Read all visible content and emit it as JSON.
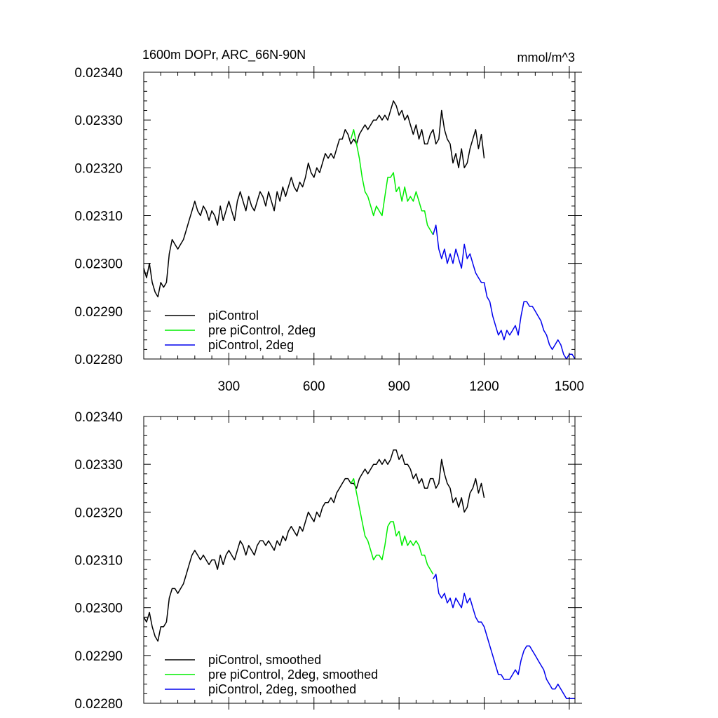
{
  "chart_data": [
    {
      "type": "line",
      "title": "1600m DOPr, ARC_66N-90N",
      "units": "mmol/m^3",
      "xlabel": "",
      "ylabel": "",
      "xlim": [
        0,
        1520
      ],
      "ylim": [
        0.0228,
        0.0234
      ],
      "xticks": [
        300,
        600,
        900,
        1200,
        1500
      ],
      "xtick_labels": [
        "300",
        "600",
        "900",
        "1200",
        "1500"
      ],
      "yticks": [
        0.0228,
        0.0229,
        0.023,
        0.0231,
        0.0232,
        0.0233,
        0.0234
      ],
      "ytick_labels": [
        "0.02280",
        "0.02290",
        "0.02300",
        "0.02310",
        "0.02320",
        "0.02330",
        "0.02340"
      ],
      "legend_position": "bottom-left",
      "grid": false,
      "series": [
        {
          "name": "piControl",
          "color": "#000000",
          "x": [
            0,
            10,
            20,
            30,
            40,
            50,
            60,
            70,
            80,
            90,
            100,
            110,
            120,
            130,
            140,
            150,
            160,
            170,
            180,
            190,
            200,
            210,
            220,
            230,
            240,
            250,
            260,
            270,
            280,
            290,
            300,
            310,
            320,
            330,
            340,
            350,
            360,
            370,
            380,
            390,
            400,
            410,
            420,
            430,
            440,
            450,
            460,
            470,
            480,
            490,
            500,
            510,
            520,
            530,
            540,
            550,
            560,
            570,
            580,
            590,
            600,
            610,
            620,
            630,
            640,
            650,
            660,
            670,
            680,
            690,
            700,
            710,
            720,
            730,
            740,
            750,
            760,
            770,
            780,
            790,
            800,
            810,
            820,
            830,
            840,
            850,
            860,
            870,
            880,
            890,
            900,
            910,
            920,
            930,
            940,
            950,
            960,
            970,
            980,
            990,
            1000,
            1010,
            1020,
            1030,
            1040,
            1050,
            1060,
            1070,
            1080,
            1090,
            1100,
            1110,
            1120,
            1130,
            1140,
            1150,
            1160,
            1170,
            1180,
            1190,
            1200
          ],
          "values": [
            0.02299,
            0.02297,
            0.023,
            0.02296,
            0.02294,
            0.02293,
            0.02296,
            0.02295,
            0.02296,
            0.02302,
            0.02305,
            0.02304,
            0.02303,
            0.02304,
            0.02305,
            0.02307,
            0.02309,
            0.02311,
            0.02313,
            0.02311,
            0.0231,
            0.02312,
            0.02311,
            0.02309,
            0.02311,
            0.0231,
            0.02308,
            0.02312,
            0.02309,
            0.02311,
            0.02313,
            0.02311,
            0.02309,
            0.02313,
            0.02315,
            0.02313,
            0.02311,
            0.02314,
            0.02312,
            0.02311,
            0.02313,
            0.02315,
            0.02314,
            0.02312,
            0.02315,
            0.02313,
            0.02311,
            0.02315,
            0.02313,
            0.02316,
            0.02314,
            0.02316,
            0.02318,
            0.02316,
            0.02315,
            0.02317,
            0.02316,
            0.02318,
            0.02321,
            0.02319,
            0.02318,
            0.0232,
            0.02319,
            0.02321,
            0.02323,
            0.02322,
            0.02323,
            0.02322,
            0.02324,
            0.02326,
            0.02326,
            0.02328,
            0.02327,
            0.02325,
            0.02326,
            0.02325,
            0.02327,
            0.02328,
            0.02329,
            0.02328,
            0.02329,
            0.0233,
            0.0233,
            0.02331,
            0.0233,
            0.02331,
            0.0233,
            0.02332,
            0.02334,
            0.02333,
            0.02331,
            0.02332,
            0.0233,
            0.02331,
            0.02329,
            0.02327,
            0.02329,
            0.02326,
            0.02328,
            0.02325,
            0.02325,
            0.02327,
            0.02328,
            0.02325,
            0.02326,
            0.02332,
            0.02328,
            0.02326,
            0.02325,
            0.02321,
            0.02323,
            0.0232,
            0.02324,
            0.0232,
            0.02321,
            0.02324,
            0.02326,
            0.02328,
            0.02324,
            0.02327,
            0.02322
          ]
        },
        {
          "name": "pre piControl, 2deg",
          "color": "#00ee00",
          "x": [
            730,
            740,
            750,
            760,
            770,
            780,
            790,
            800,
            810,
            820,
            830,
            840,
            850,
            860,
            870,
            880,
            890,
            900,
            910,
            920,
            930,
            940,
            950,
            960,
            970,
            980,
            990,
            1000,
            1010,
            1020
          ],
          "values": [
            0.02326,
            0.02328,
            0.02325,
            0.02322,
            0.02318,
            0.02315,
            0.02314,
            0.02312,
            0.0231,
            0.02312,
            0.02311,
            0.0231,
            0.02314,
            0.02318,
            0.02318,
            0.02319,
            0.02315,
            0.02316,
            0.02313,
            0.02316,
            0.02313,
            0.02314,
            0.02313,
            0.02315,
            0.02313,
            0.02311,
            0.02311,
            0.02308,
            0.02307,
            0.02306
          ]
        },
        {
          "name": "piControl, 2deg",
          "color": "#0000ee",
          "x": [
            1020,
            1030,
            1040,
            1050,
            1060,
            1070,
            1080,
            1090,
            1100,
            1110,
            1120,
            1130,
            1140,
            1150,
            1160,
            1170,
            1180,
            1190,
            1200,
            1210,
            1220,
            1230,
            1240,
            1250,
            1260,
            1270,
            1280,
            1290,
            1300,
            1310,
            1320,
            1330,
            1340,
            1350,
            1360,
            1370,
            1380,
            1390,
            1400,
            1410,
            1420,
            1430,
            1440,
            1450,
            1460,
            1470,
            1480,
            1490,
            1500,
            1510,
            1520
          ],
          "values": [
            0.02306,
            0.02308,
            0.02303,
            0.02301,
            0.02303,
            0.023,
            0.02302,
            0.023,
            0.02303,
            0.02301,
            0.02299,
            0.02304,
            0.02301,
            0.02302,
            0.023,
            0.02298,
            0.02297,
            0.02296,
            0.02296,
            0.02293,
            0.02292,
            0.02289,
            0.02287,
            0.02285,
            0.02286,
            0.02284,
            0.02286,
            0.02285,
            0.02286,
            0.02287,
            0.02285,
            0.02289,
            0.02292,
            0.02292,
            0.02291,
            0.02291,
            0.0229,
            0.02289,
            0.02288,
            0.02286,
            0.02285,
            0.02283,
            0.02282,
            0.02283,
            0.02284,
            0.02283,
            0.02281,
            0.0228,
            0.02281,
            0.02281,
            0.0228
          ]
        }
      ]
    },
    {
      "type": "line",
      "title": "",
      "units": "",
      "xlabel": "",
      "ylabel": "",
      "xlim": [
        0,
        1520
      ],
      "ylim": [
        0.0228,
        0.0234
      ],
      "xticks": [
        300,
        600,
        900,
        1200,
        1500
      ],
      "xtick_labels": [],
      "yticks": [
        0.0228,
        0.0229,
        0.023,
        0.0231,
        0.0232,
        0.0233,
        0.0234
      ],
      "ytick_labels": [
        "0.02280",
        "0.02290",
        "0.02300",
        "0.02310",
        "0.02320",
        "0.02330",
        "0.02340"
      ],
      "legend_position": "bottom-left",
      "grid": false,
      "series": [
        {
          "name": "piControl, smoothed",
          "color": "#000000",
          "x": [
            0,
            10,
            20,
            30,
            40,
            50,
            60,
            70,
            80,
            90,
            100,
            110,
            120,
            130,
            140,
            150,
            160,
            170,
            180,
            190,
            200,
            210,
            220,
            230,
            240,
            250,
            260,
            270,
            280,
            290,
            300,
            310,
            320,
            330,
            340,
            350,
            360,
            370,
            380,
            390,
            400,
            410,
            420,
            430,
            440,
            450,
            460,
            470,
            480,
            490,
            500,
            510,
            520,
            530,
            540,
            550,
            560,
            570,
            580,
            590,
            600,
            610,
            620,
            630,
            640,
            650,
            660,
            670,
            680,
            690,
            700,
            710,
            720,
            730,
            740,
            750,
            760,
            770,
            780,
            790,
            800,
            810,
            820,
            830,
            840,
            850,
            860,
            870,
            880,
            890,
            900,
            910,
            920,
            930,
            940,
            950,
            960,
            970,
            980,
            990,
            1000,
            1010,
            1020,
            1030,
            1040,
            1050,
            1060,
            1070,
            1080,
            1090,
            1100,
            1110,
            1120,
            1130,
            1140,
            1150,
            1160,
            1170,
            1180,
            1190,
            1200
          ],
          "values": [
            0.02298,
            0.02297,
            0.02299,
            0.02296,
            0.02294,
            0.02293,
            0.02296,
            0.02296,
            0.02297,
            0.02302,
            0.02304,
            0.02304,
            0.02303,
            0.02304,
            0.02305,
            0.02307,
            0.02309,
            0.02311,
            0.02312,
            0.02311,
            0.0231,
            0.02311,
            0.0231,
            0.02309,
            0.0231,
            0.0231,
            0.02308,
            0.02311,
            0.02309,
            0.02311,
            0.02312,
            0.02311,
            0.0231,
            0.02312,
            0.02314,
            0.02313,
            0.02311,
            0.02313,
            0.02312,
            0.02311,
            0.02313,
            0.02314,
            0.02314,
            0.02313,
            0.02314,
            0.02313,
            0.02312,
            0.02314,
            0.02313,
            0.02315,
            0.02314,
            0.02316,
            0.02317,
            0.02316,
            0.02315,
            0.02317,
            0.02316,
            0.02318,
            0.0232,
            0.02319,
            0.02318,
            0.0232,
            0.02319,
            0.02321,
            0.02322,
            0.02322,
            0.02323,
            0.02322,
            0.02324,
            0.02325,
            0.02326,
            0.02327,
            0.02327,
            0.02326,
            0.02326,
            0.02325,
            0.02327,
            0.02328,
            0.02329,
            0.02328,
            0.02329,
            0.0233,
            0.0233,
            0.02331,
            0.0233,
            0.02331,
            0.0233,
            0.02331,
            0.02333,
            0.02333,
            0.02331,
            0.02332,
            0.0233,
            0.0233,
            0.02329,
            0.02327,
            0.02328,
            0.02326,
            0.02327,
            0.02325,
            0.02325,
            0.02327,
            0.02327,
            0.02325,
            0.02326,
            0.02331,
            0.02328,
            0.02326,
            0.02325,
            0.02322,
            0.02323,
            0.02321,
            0.02323,
            0.0232,
            0.02321,
            0.02324,
            0.02325,
            0.02327,
            0.02324,
            0.02326,
            0.02323
          ]
        },
        {
          "name": "pre piControl, 2deg, smoothed",
          "color": "#00ee00",
          "x": [
            730,
            740,
            750,
            760,
            770,
            780,
            790,
            800,
            810,
            820,
            830,
            840,
            850,
            860,
            870,
            880,
            890,
            900,
            910,
            920,
            930,
            940,
            950,
            960,
            970,
            980,
            990,
            1000,
            1010,
            1020
          ],
          "values": [
            0.02326,
            0.02327,
            0.02324,
            0.02321,
            0.02318,
            0.02315,
            0.02314,
            0.02312,
            0.0231,
            0.02311,
            0.02311,
            0.0231,
            0.02313,
            0.02317,
            0.02318,
            0.02318,
            0.02315,
            0.02316,
            0.02313,
            0.02315,
            0.02313,
            0.02314,
            0.02313,
            0.02314,
            0.02313,
            0.02311,
            0.02311,
            0.02309,
            0.02308,
            0.02307
          ]
        },
        {
          "name": "piControl, 2deg, smoothed",
          "color": "#0000ee",
          "x": [
            1020,
            1030,
            1040,
            1050,
            1060,
            1070,
            1080,
            1090,
            1100,
            1110,
            1120,
            1130,
            1140,
            1150,
            1160,
            1170,
            1180,
            1190,
            1200,
            1210,
            1220,
            1230,
            1240,
            1250,
            1260,
            1270,
            1280,
            1290,
            1300,
            1310,
            1320,
            1330,
            1340,
            1350,
            1360,
            1370,
            1380,
            1390,
            1400,
            1410,
            1420,
            1430,
            1440,
            1450,
            1460,
            1470,
            1480,
            1490,
            1500,
            1510,
            1520
          ],
          "values": [
            0.02306,
            0.02307,
            0.02303,
            0.02302,
            0.02303,
            0.02301,
            0.02302,
            0.023,
            0.02302,
            0.02301,
            0.023,
            0.02303,
            0.02301,
            0.02302,
            0.023,
            0.02298,
            0.02297,
            0.02297,
            0.02296,
            0.02294,
            0.02292,
            0.0229,
            0.02288,
            0.02286,
            0.02286,
            0.02285,
            0.02285,
            0.02285,
            0.02286,
            0.02287,
            0.02286,
            0.02289,
            0.02291,
            0.02292,
            0.02292,
            0.02291,
            0.0229,
            0.02289,
            0.02288,
            0.02287,
            0.02285,
            0.02284,
            0.02283,
            0.02283,
            0.02284,
            0.02283,
            0.02282,
            0.02281,
            0.02281,
            0.02281,
            0.02281
          ]
        }
      ]
    }
  ]
}
